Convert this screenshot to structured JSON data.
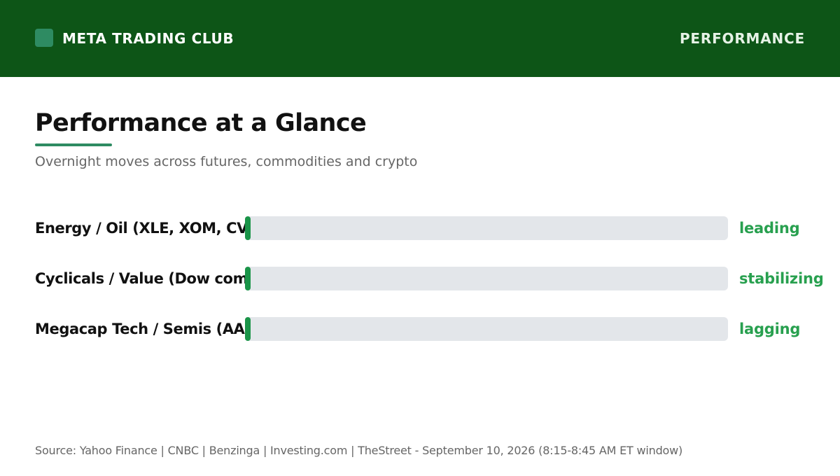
{
  "header": {
    "brand": "META TRADING CLUB",
    "section": "PERFORMANCE",
    "background": "#0d5517",
    "brand_mark_color": "#2e8b62"
  },
  "title": "Performance at a Glance",
  "subtitle": "Overnight moves across futures, commodities and crypto",
  "chart_data": {
    "type": "bar",
    "orientation": "horizontal",
    "categories": [
      "Energy / Oil (XLE, XOM, CV",
      "Cyclicals / Value (Dow com",
      "Megacap Tech / Semis (AA"
    ],
    "values": [
      0.01,
      0.01,
      0.01
    ],
    "value_labels": [
      "leading",
      "stabilizing",
      "lagging"
    ],
    "xlim": [
      0,
      1
    ],
    "grid": false,
    "bar_color": "#1a9448",
    "track_color": "#e3e6ea",
    "label_color": "#28a04f"
  },
  "source": "Source: Yahoo Finance | CNBC | Benzinga | Investing.com | TheStreet - September 10, 2026 (8:15-8:45 AM ET window)"
}
